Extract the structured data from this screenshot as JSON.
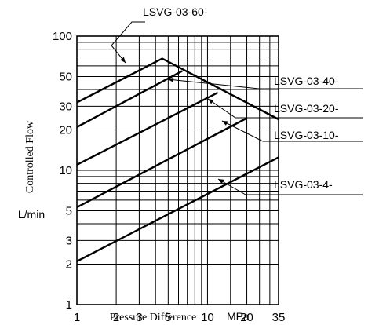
{
  "chart_data": {
    "type": "line",
    "title": "",
    "xlabel": "Pressure Difference",
    "xunit": "MPa",
    "ylabel": "Controlled Flow",
    "yunit": "L/min",
    "x_scale": "log",
    "y_scale": "log",
    "xlim": [
      1,
      35
    ],
    "ylim": [
      1,
      100
    ],
    "grid": true,
    "x_ticks": [
      1,
      2,
      3,
      5,
      10,
      20,
      35
    ],
    "x_tick_labels": [
      "1",
      "2",
      "3",
      "5",
      "10",
      "20",
      "35"
    ],
    "x_minor_grid": [
      4,
      6,
      7,
      8,
      9,
      15,
      25,
      30
    ],
    "y_ticks": [
      1,
      2,
      3,
      5,
      10,
      20,
      30,
      50,
      100
    ],
    "y_tick_labels": [
      "1",
      "2",
      "3",
      "5",
      "10",
      "20",
      "30",
      "50",
      "100"
    ],
    "y_minor_grid": [
      4,
      6,
      7,
      8,
      9,
      40,
      60,
      70,
      80,
      90
    ],
    "series": [
      {
        "name": "LSVG-03-60-",
        "x": [
          1,
          4.5,
          35
        ],
        "y": [
          32,
          68,
          24
        ]
      },
      {
        "name": "LSVG-03-40-",
        "x": [
          1,
          6.4
        ],
        "y": [
          21,
          55
        ]
      },
      {
        "name": "LSVG-03-20-",
        "x": [
          1,
          12
        ],
        "y": [
          11,
          38
        ]
      },
      {
        "name": "LSVG-03-10-",
        "x": [
          1,
          20
        ],
        "y": [
          5.3,
          24.5
        ]
      },
      {
        "name": "LSVG-03-4-",
        "x": [
          1,
          35
        ],
        "y": [
          2.1,
          12.5
        ]
      }
    ]
  }
}
